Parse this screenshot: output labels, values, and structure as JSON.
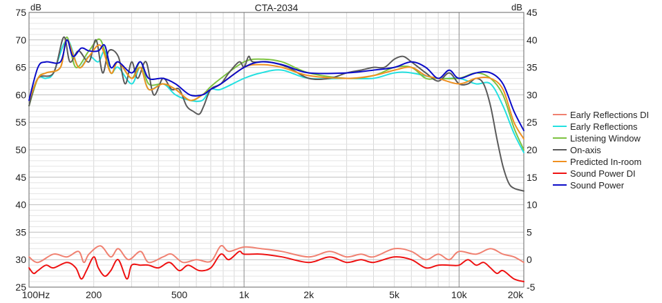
{
  "chart_data": {
    "type": "line",
    "title": "CTA-2034",
    "x_scale": "log",
    "xlim": [
      100,
      20000
    ],
    "x_ticks": [
      {
        "value": 100,
        "label": "100Hz"
      },
      {
        "value": 200,
        "label": "200"
      },
      {
        "value": 500,
        "label": "500"
      },
      {
        "value": 1000,
        "label": "1k"
      },
      {
        "value": 2000,
        "label": "2k"
      },
      {
        "value": 5000,
        "label": "5k"
      },
      {
        "value": 10000,
        "label": "10k"
      },
      {
        "value": 20000,
        "label": "20k"
      }
    ],
    "y_left": {
      "label": "dB",
      "lim": [
        25,
        75
      ],
      "ticks": [
        25,
        30,
        35,
        40,
        45,
        50,
        55,
        60,
        65,
        70,
        75
      ]
    },
    "y_right": {
      "label": "dB",
      "lim": [
        -5,
        45
      ],
      "ticks": [
        -5,
        0,
        5,
        10,
        15,
        20,
        25,
        30,
        35,
        40,
        45
      ]
    },
    "grid": true,
    "legend_position": "right",
    "series": [
      {
        "name": "Early Reflections DI",
        "color": "#f08070",
        "axis": "right",
        "points": [
          [
            100,
            0.5
          ],
          [
            110,
            -0.5
          ],
          [
            130,
            1.0
          ],
          [
            150,
            0.5
          ],
          [
            170,
            1.5
          ],
          [
            180,
            -0.5
          ],
          [
            190,
            1.0
          ],
          [
            215,
            2.5
          ],
          [
            240,
            0.5
          ],
          [
            260,
            2.0
          ],
          [
            290,
            0.0
          ],
          [
            330,
            1.5
          ],
          [
            360,
            -0.5
          ],
          [
            420,
            0.5
          ],
          [
            460,
            1.0
          ],
          [
            520,
            -0.5
          ],
          [
            600,
            0.0
          ],
          [
            700,
            -0.3
          ],
          [
            780,
            2.5
          ],
          [
            850,
            1.5
          ],
          [
            1000,
            2.3
          ],
          [
            1200,
            2.0
          ],
          [
            1500,
            1.5
          ],
          [
            2000,
            0.5
          ],
          [
            2500,
            1.5
          ],
          [
            3000,
            0.5
          ],
          [
            3500,
            1.0
          ],
          [
            4000,
            0.5
          ],
          [
            5000,
            2.0
          ],
          [
            6000,
            1.5
          ],
          [
            7000,
            0.0
          ],
          [
            8000,
            1.0
          ],
          [
            9000,
            0.0
          ],
          [
            10000,
            1.5
          ],
          [
            12000,
            1.0
          ],
          [
            14000,
            2.0
          ],
          [
            16000,
            1.0
          ],
          [
            18000,
            0.5
          ],
          [
            20000,
            -0.5
          ]
        ]
      },
      {
        "name": "Early Reflections",
        "color": "#22e0e0",
        "axis": "left",
        "points": [
          [
            100,
            59
          ],
          [
            110,
            63
          ],
          [
            120,
            63
          ],
          [
            130,
            64
          ],
          [
            150,
            70
          ],
          [
            170,
            65
          ],
          [
            190,
            67
          ],
          [
            210,
            66
          ],
          [
            225,
            68
          ],
          [
            240,
            64
          ],
          [
            260,
            65
          ],
          [
            300,
            62
          ],
          [
            330,
            65
          ],
          [
            360,
            61
          ],
          [
            420,
            62
          ],
          [
            480,
            60
          ],
          [
            560,
            59
          ],
          [
            640,
            59
          ],
          [
            700,
            61
          ],
          [
            780,
            61
          ],
          [
            1000,
            63
          ],
          [
            1200,
            64
          ],
          [
            1500,
            64.5
          ],
          [
            2000,
            63
          ],
          [
            3000,
            63
          ],
          [
            4000,
            63
          ],
          [
            5000,
            64
          ],
          [
            6000,
            64
          ],
          [
            8000,
            63
          ],
          [
            10000,
            63
          ],
          [
            12000,
            62
          ],
          [
            14000,
            62
          ],
          [
            16000,
            58
          ],
          [
            18000,
            53
          ],
          [
            20000,
            49.5
          ]
        ]
      },
      {
        "name": "Listening Window",
        "color": "#7cc23f",
        "axis": "left",
        "points": [
          [
            100,
            58
          ],
          [
            110,
            63
          ],
          [
            120,
            64
          ],
          [
            140,
            65
          ],
          [
            150,
            70.5
          ],
          [
            165,
            65
          ],
          [
            190,
            68
          ],
          [
            215,
            70
          ],
          [
            240,
            64
          ],
          [
            260,
            66
          ],
          [
            300,
            63
          ],
          [
            330,
            66
          ],
          [
            360,
            62
          ],
          [
            420,
            62
          ],
          [
            480,
            61
          ],
          [
            560,
            59
          ],
          [
            640,
            60
          ],
          [
            700,
            61.5
          ],
          [
            780,
            63
          ],
          [
            1000,
            66
          ],
          [
            1200,
            66.5
          ],
          [
            1500,
            66
          ],
          [
            2000,
            64
          ],
          [
            3000,
            63
          ],
          [
            4000,
            63.5
          ],
          [
            5000,
            65
          ],
          [
            6000,
            65
          ],
          [
            7000,
            63
          ],
          [
            8000,
            63
          ],
          [
            10000,
            63
          ],
          [
            12000,
            64
          ],
          [
            14000,
            63
          ],
          [
            16000,
            60
          ],
          [
            18000,
            54
          ],
          [
            20000,
            50
          ]
        ]
      },
      {
        "name": "On-axis",
        "color": "#595959",
        "axis": "left",
        "points": [
          [
            100,
            58
          ],
          [
            110,
            63
          ],
          [
            130,
            64
          ],
          [
            145,
            70.5
          ],
          [
            155,
            66
          ],
          [
            170,
            68
          ],
          [
            190,
            66
          ],
          [
            205,
            70
          ],
          [
            220,
            64
          ],
          [
            235,
            68
          ],
          [
            260,
            67
          ],
          [
            280,
            62
          ],
          [
            300,
            66
          ],
          [
            320,
            63
          ],
          [
            350,
            66
          ],
          [
            380,
            60
          ],
          [
            420,
            63
          ],
          [
            460,
            61
          ],
          [
            500,
            61
          ],
          [
            540,
            58
          ],
          [
            580,
            57
          ],
          [
            620,
            56.5
          ],
          [
            650,
            58
          ],
          [
            700,
            61
          ],
          [
            780,
            62
          ],
          [
            850,
            64
          ],
          [
            950,
            66
          ],
          [
            1000,
            65
          ],
          [
            1050,
            67
          ],
          [
            1100,
            66
          ],
          [
            1300,
            66
          ],
          [
            1600,
            65
          ],
          [
            2000,
            63
          ],
          [
            2500,
            63
          ],
          [
            3000,
            64
          ],
          [
            3500,
            64.5
          ],
          [
            4000,
            65
          ],
          [
            4500,
            65
          ],
          [
            5000,
            66.5
          ],
          [
            5500,
            67
          ],
          [
            6000,
            66
          ],
          [
            7000,
            64
          ],
          [
            8000,
            62.5
          ],
          [
            9000,
            64
          ],
          [
            10000,
            62
          ],
          [
            11000,
            62
          ],
          [
            12000,
            63
          ],
          [
            13000,
            62
          ],
          [
            14000,
            58
          ],
          [
            15000,
            52
          ],
          [
            16000,
            47
          ],
          [
            17000,
            44
          ],
          [
            18000,
            43
          ],
          [
            20000,
            42.5
          ]
        ]
      },
      {
        "name": "Predicted In-room",
        "color": "#f09020",
        "axis": "left",
        "points": [
          [
            100,
            59
          ],
          [
            110,
            63
          ],
          [
            120,
            64
          ],
          [
            140,
            65
          ],
          [
            150,
            70
          ],
          [
            170,
            65
          ],
          [
            190,
            67
          ],
          [
            215,
            69
          ],
          [
            240,
            64
          ],
          [
            260,
            66
          ],
          [
            300,
            63
          ],
          [
            330,
            65
          ],
          [
            360,
            61
          ],
          [
            420,
            62
          ],
          [
            480,
            61
          ],
          [
            560,
            59
          ],
          [
            640,
            60
          ],
          [
            700,
            61
          ],
          [
            780,
            62
          ],
          [
            1000,
            65
          ],
          [
            1200,
            65.5
          ],
          [
            1500,
            65
          ],
          [
            2000,
            63.5
          ],
          [
            3000,
            63
          ],
          [
            4000,
            63.5
          ],
          [
            5000,
            64.5
          ],
          [
            6000,
            65
          ],
          [
            7000,
            63.5
          ],
          [
            8000,
            63
          ],
          [
            10000,
            62
          ],
          [
            12000,
            63
          ],
          [
            14000,
            63
          ],
          [
            16000,
            61
          ],
          [
            18000,
            55
          ],
          [
            20000,
            52
          ]
        ]
      },
      {
        "name": "Sound Power DI",
        "color": "#ee1010",
        "axis": "right",
        "points": [
          [
            100,
            -1.5
          ],
          [
            105,
            -2.5
          ],
          [
            110,
            -2.0
          ],
          [
            120,
            -1.0
          ],
          [
            130,
            -1.5
          ],
          [
            150,
            -0.5
          ],
          [
            165,
            -1.5
          ],
          [
            175,
            -3.5
          ],
          [
            185,
            -2.0
          ],
          [
            200,
            0.5
          ],
          [
            210,
            -1.5
          ],
          [
            225,
            -3.0
          ],
          [
            240,
            -2.0
          ],
          [
            260,
            0.0
          ],
          [
            285,
            -3.5
          ],
          [
            300,
            -1.0
          ],
          [
            330,
            -1.0
          ],
          [
            360,
            -1.0
          ],
          [
            400,
            -1.5
          ],
          [
            450,
            -0.5
          ],
          [
            500,
            -2.0
          ],
          [
            550,
            -1.0
          ],
          [
            620,
            -2.0
          ],
          [
            700,
            -1.5
          ],
          [
            780,
            1.0
          ],
          [
            850,
            0.0
          ],
          [
            950,
            1.5
          ],
          [
            1000,
            1.0
          ],
          [
            1200,
            1.0
          ],
          [
            1500,
            0.5
          ],
          [
            2000,
            -0.5
          ],
          [
            2500,
            0.5
          ],
          [
            3000,
            -0.5
          ],
          [
            3500,
            0.0
          ],
          [
            4000,
            -0.5
          ],
          [
            5000,
            0.5
          ],
          [
            6000,
            0.0
          ],
          [
            7000,
            -1.5
          ],
          [
            8000,
            -1.0
          ],
          [
            9000,
            -1.0
          ],
          [
            10000,
            -1.0
          ],
          [
            11000,
            0.0
          ],
          [
            12000,
            -1.0
          ],
          [
            13000,
            -0.5
          ],
          [
            14000,
            -1.5
          ],
          [
            15000,
            -2.5
          ],
          [
            16000,
            -2.0
          ],
          [
            18000,
            -3.5
          ],
          [
            20000,
            -4.0
          ]
        ]
      },
      {
        "name": "Sound Power",
        "color": "#0a0ac8",
        "axis": "left",
        "points": [
          [
            100,
            59
          ],
          [
            110,
            65
          ],
          [
            120,
            66
          ],
          [
            140,
            66
          ],
          [
            150,
            70
          ],
          [
            160,
            67
          ],
          [
            175,
            68.5
          ],
          [
            190,
            68
          ],
          [
            210,
            68
          ],
          [
            225,
            69
          ],
          [
            240,
            65
          ],
          [
            260,
            66
          ],
          [
            300,
            64
          ],
          [
            330,
            66
          ],
          [
            360,
            63
          ],
          [
            420,
            63
          ],
          [
            480,
            62
          ],
          [
            560,
            60
          ],
          [
            640,
            60
          ],
          [
            700,
            61
          ],
          [
            780,
            62
          ],
          [
            1000,
            65
          ],
          [
            1200,
            66
          ],
          [
            1500,
            65.5
          ],
          [
            2000,
            64
          ],
          [
            3000,
            64
          ],
          [
            4000,
            64.5
          ],
          [
            5000,
            65
          ],
          [
            6000,
            66
          ],
          [
            7000,
            65
          ],
          [
            8000,
            63
          ],
          [
            9000,
            64.5
          ],
          [
            10000,
            63
          ],
          [
            12000,
            64
          ],
          [
            14000,
            64
          ],
          [
            16000,
            62
          ],
          [
            18000,
            57
          ],
          [
            20000,
            53.5
          ]
        ]
      }
    ]
  }
}
